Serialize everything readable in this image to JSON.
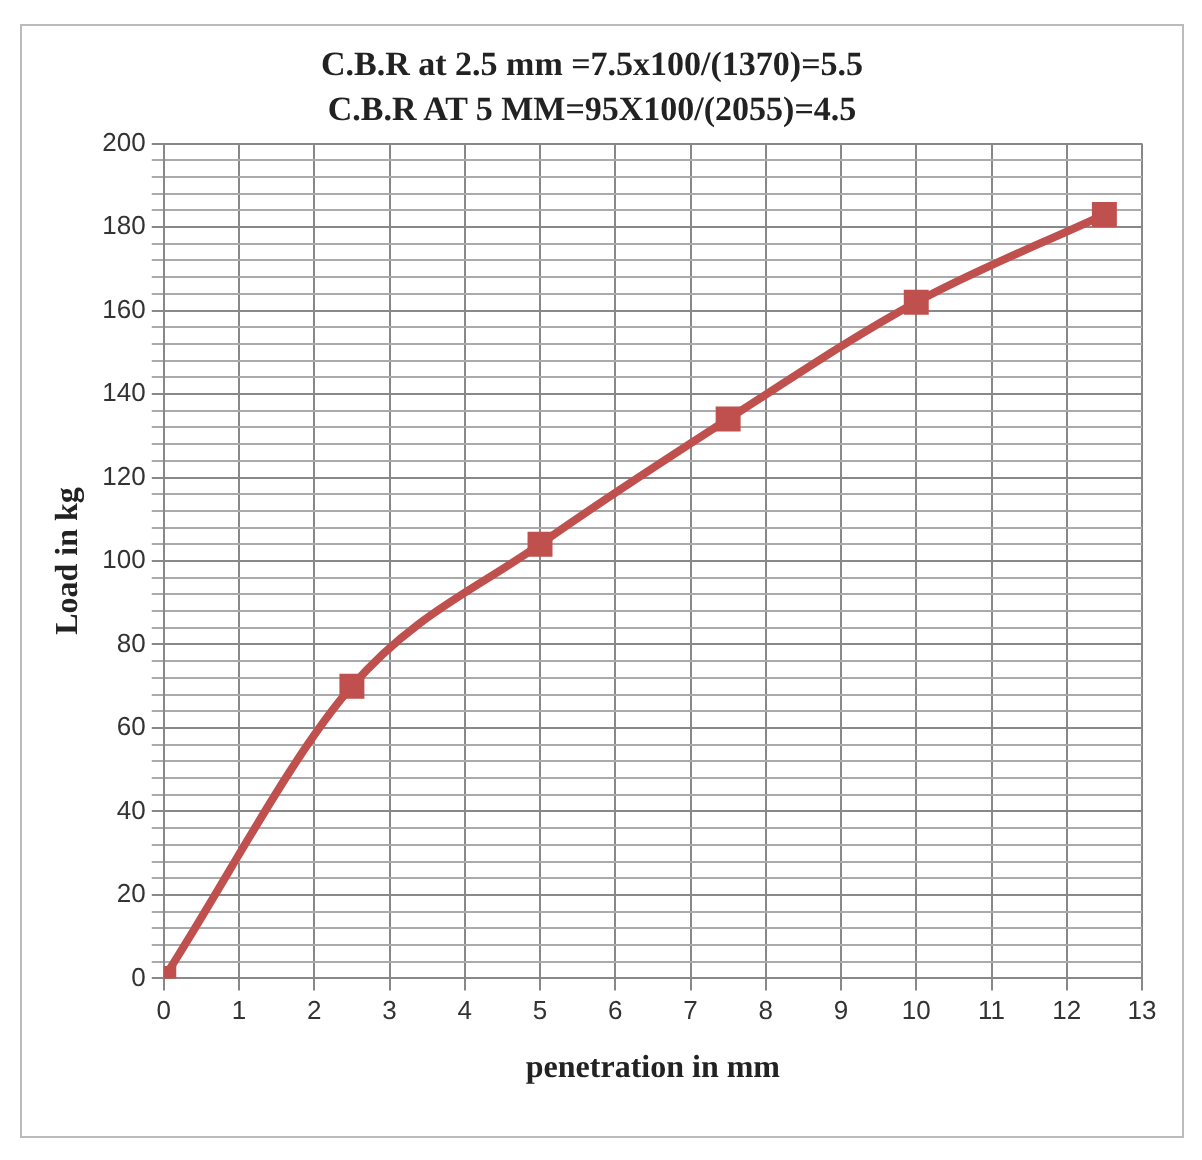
{
  "chart_data": {
    "type": "line",
    "title": "C.B.R at 2.5 mm =7.5x100/(1370)=5.5",
    "subtitle": "C.B.R AT 5 MM=95X100/(2055)=4.5",
    "xlabel": "penetration in mm",
    "ylabel": "Load in kg",
    "x": [
      0,
      2.5,
      5,
      7.5,
      10,
      12.5
    ],
    "series": [
      {
        "color": "#c0504d",
        "values": [
          0,
          70,
          104,
          134,
          162,
          183
        ]
      }
    ],
    "xlim": [
      0,
      13
    ],
    "xticks": [
      0,
      1,
      2,
      3,
      4,
      5,
      6,
      7,
      8,
      9,
      10,
      11,
      12,
      13
    ],
    "ylim": [
      0,
      200
    ],
    "yticks": [
      0,
      {
        "value": 4,
        "label": null
      },
      {
        "value": 8,
        "label": null
      },
      {
        "value": 12,
        "label": null
      },
      {
        "value": 16,
        "label": null
      },
      20,
      {
        "value": 24,
        "label": null
      },
      {
        "value": 28,
        "label": null
      },
      {
        "value": 32,
        "label": null
      },
      {
        "value": 36,
        "label": null
      },
      40,
      {
        "value": 44,
        "label": null
      },
      {
        "value": 48,
        "label": null
      },
      {
        "value": 52,
        "label": null
      },
      {
        "value": 56,
        "label": null
      },
      60,
      {
        "value": 64,
        "label": null
      },
      {
        "value": 68,
        "label": null
      },
      {
        "value": 72,
        "label": null
      },
      {
        "value": 76,
        "label": null
      },
      80,
      {
        "value": 84,
        "label": null
      },
      {
        "value": 88,
        "label": null
      },
      {
        "value": 92,
        "label": null
      },
      {
        "value": 96,
        "label": null
      },
      100,
      {
        "value": 104,
        "label": null
      },
      {
        "value": 108,
        "label": null
      },
      {
        "value": 112,
        "label": null
      },
      {
        "value": 116,
        "label": null
      },
      120,
      {
        "value": 124,
        "label": null
      },
      {
        "value": 128,
        "label": null
      },
      {
        "value": 132,
        "label": null
      },
      {
        "value": 136,
        "label": null
      },
      140,
      {
        "value": 144,
        "label": null
      },
      {
        "value": 148,
        "label": null
      },
      {
        "value": 152,
        "label": null
      },
      {
        "value": 156,
        "label": null
      },
      160,
      {
        "value": 164,
        "label": null
      },
      {
        "value": 168,
        "label": null
      },
      {
        "value": 172,
        "label": null
      },
      {
        "value": 176,
        "label": null
      },
      180,
      {
        "value": 184,
        "label": null
      },
      {
        "value": 188,
        "label": null
      },
      {
        "value": 192,
        "label": null
      },
      {
        "value": 196,
        "label": null
      },
      200
    ],
    "grid": true,
    "legend": false,
    "marker": "square",
    "line_style": "solid"
  }
}
